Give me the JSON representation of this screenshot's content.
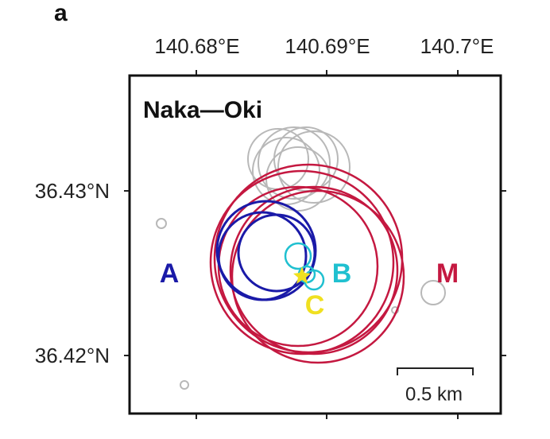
{
  "panel_label": "a",
  "title": "Naka—Oki",
  "longitude_labels": [
    "140.68°E",
    "140.69°E",
    "140.7°E"
  ],
  "latitude_labels": [
    "36.43°N",
    "36.42°N"
  ],
  "cluster_labels": {
    "A": "A",
    "B": "B",
    "C": "C",
    "M": "M"
  },
  "scale_bar": "0.5 km"
}
